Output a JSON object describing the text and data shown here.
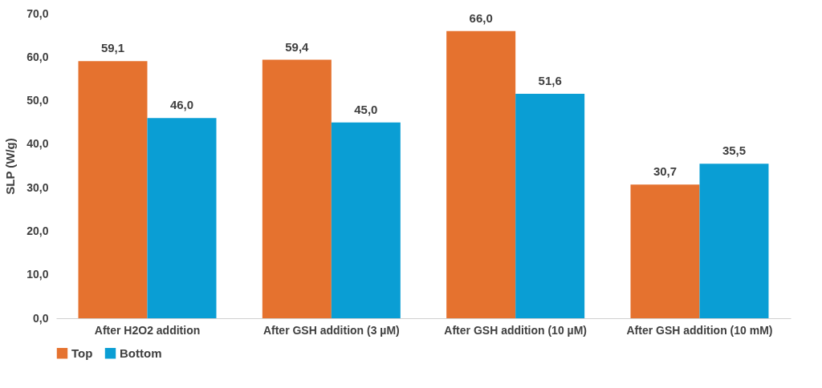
{
  "chart_data": {
    "type": "bar",
    "ylabel": "SLP (W/g)",
    "categories": [
      "After H2O2 addition",
      "After GSH addition (3 µM)",
      "After GSH addition (10 µM)",
      "After GSH addition (10 mM)"
    ],
    "series": [
      {
        "name": "Top",
        "color": "#e5722f",
        "values": [
          59.1,
          59.4,
          66.0,
          30.7
        ],
        "value_labels": [
          "59,1",
          "59,4",
          "66,0",
          "30,7"
        ]
      },
      {
        "name": "Bottom",
        "color": "#0a9ed4",
        "values": [
          46.0,
          45.0,
          51.6,
          35.5
        ],
        "value_labels": [
          "46,0",
          "45,0",
          "51,6",
          "35,5"
        ]
      }
    ],
    "ylim": [
      0,
      70
    ],
    "yticks": [
      {
        "value": 0,
        "label": "0,0"
      },
      {
        "value": 10,
        "label": "10,0"
      },
      {
        "value": 20,
        "label": "20,0"
      },
      {
        "value": 30,
        "label": "30,0"
      },
      {
        "value": 40,
        "label": "40,0"
      },
      {
        "value": 50,
        "label": "50,0"
      },
      {
        "value": 60,
        "label": "60,0"
      },
      {
        "value": 70,
        "label": "70,0"
      }
    ],
    "legend": "bottom"
  }
}
